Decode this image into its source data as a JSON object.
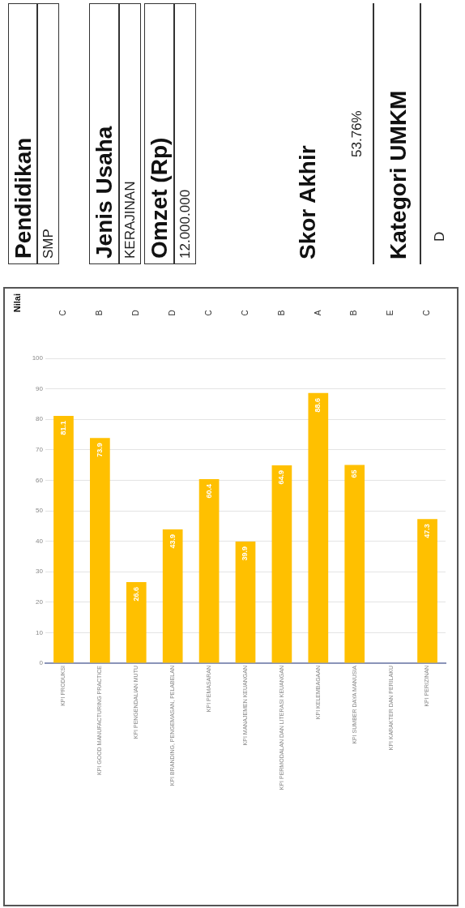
{
  "chart_data": [
    {
      "type": "bar",
      "categories": [
        "KPI PRODUKSI",
        "KPI GOOD MANUFACTURING PRACTICE",
        "KPI PENGENDALIAN MUTU",
        "KPI BRANDING, PENGEMASAN, PELABELAN",
        "KPI PEMASARAN",
        "KPI MANAJEMEN KEUANGAN",
        "KPI PERMODALAN DAN LITERASI KEUANGAN",
        "KPI KELEMBAGAAN",
        "KPI SUMBER DAYA MANUSIA",
        "KPI KARAKTER DAN PERILAKU",
        "KPI PERIZINAN"
      ],
      "values": [
        81.1,
        73.9,
        26.6,
        43.9,
        60.4,
        39.9,
        64.9,
        88.6,
        65.0,
        null,
        47.3
      ],
      "color": "#ffc000",
      "ylim": [
        0,
        100
      ],
      "yticks": [
        0,
        10,
        20,
        30,
        40,
        50,
        60,
        70,
        80,
        90,
        100
      ],
      "grid": "y",
      "legend": false,
      "data_labels": true,
      "annotations": [
        "Nilai",
        "C",
        "B",
        "D",
        "D",
        "C",
        "C",
        "B",
        "A",
        "B",
        "E",
        "C"
      ]
    },
    {
      "type": "other",
      "annotations": [
        "Pendidikan",
        "SMP",
        "Jenis Usaha",
        "KERAJINAN",
        "Omzet (Rp)",
        "12.000.000",
        "Skor Akhir",
        "53.76%",
        "Kategori UMKM",
        "D"
      ]
    }
  ]
}
